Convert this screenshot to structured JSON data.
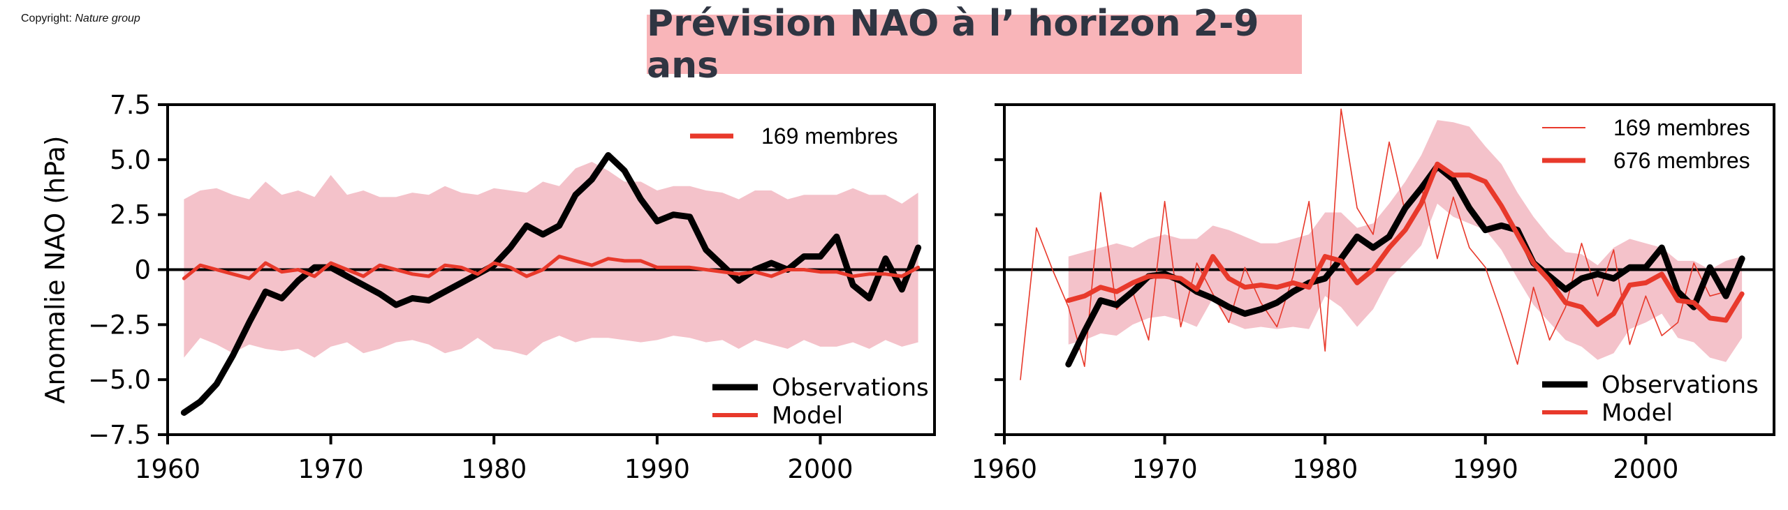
{
  "copyright": {
    "label": "Copyright:",
    "source": "Nature group"
  },
  "title": "Prévision NAO à l’ horizon 2-9 ans",
  "colors": {
    "title_bg": "#f9b5b9",
    "title_text": "#2f3542",
    "band": "#f4c2ca",
    "model": "#e8392b",
    "obs": "#000000"
  },
  "chart_data": [
    {
      "type": "line",
      "title": "",
      "xlabel": "",
      "ylabel": "Anomalie NAO (hPa)",
      "xlim": [
        1960,
        2007
      ],
      "ylim": [
        -7.5,
        7.5
      ],
      "xticks": [
        "1960",
        "1970",
        "1980",
        "1990",
        "2000"
      ],
      "yticks": [
        "7.5",
        "5.0",
        "2.5",
        "0",
        "−2.5",
        "−5.0",
        "−7.5"
      ],
      "zero_line": true,
      "top_legend": [
        {
          "label": "169 membres",
          "style": "thick-red"
        }
      ],
      "bottom_legend": [
        "Observations",
        "Model"
      ],
      "series": [
        {
          "name": "Observations",
          "color": "#000000",
          "x": [
            1961,
            1962,
            1963,
            1964,
            1965,
            1966,
            1967,
            1968,
            1969,
            1970,
            1971,
            1972,
            1973,
            1974,
            1975,
            1976,
            1977,
            1978,
            1979,
            1980,
            1981,
            1982,
            1983,
            1984,
            1985,
            1986,
            1987,
            1988,
            1989,
            1990,
            1991,
            1992,
            1993,
            1994,
            1995,
            1996,
            1997,
            1998,
            1999,
            2000,
            2001,
            2002,
            2003,
            2004,
            2005,
            2006
          ],
          "y": [
            -6.5,
            -6.0,
            -5.2,
            -3.9,
            -2.4,
            -1.0,
            -1.3,
            -0.5,
            0.1,
            0.1,
            -0.3,
            -0.7,
            -1.1,
            -1.6,
            -1.3,
            -1.4,
            -1.0,
            -0.6,
            -0.2,
            0.2,
            1.0,
            2.0,
            1.6,
            2.0,
            3.4,
            4.1,
            5.2,
            4.5,
            3.2,
            2.2,
            2.5,
            2.4,
            0.9,
            0.2,
            -0.5,
            0.0,
            0.3,
            0.0,
            0.6,
            0.6,
            1.5,
            -0.7,
            -1.3,
            0.5,
            -0.9,
            1.0
          ]
        },
        {
          "name": "Model",
          "color": "#e8392b",
          "x": [
            1961,
            1962,
            1963,
            1964,
            1965,
            1966,
            1967,
            1968,
            1969,
            1970,
            1971,
            1972,
            1973,
            1974,
            1975,
            1976,
            1977,
            1978,
            1979,
            1980,
            1981,
            1982,
            1983,
            1984,
            1985,
            1986,
            1987,
            1988,
            1989,
            1990,
            1991,
            1992,
            1993,
            1994,
            1995,
            1996,
            1997,
            1998,
            1999,
            2000,
            2001,
            2002,
            2003,
            2004,
            2005,
            2006
          ],
          "y": [
            -0.4,
            0.2,
            0.0,
            -0.2,
            -0.4,
            0.3,
            -0.1,
            0.0,
            -0.3,
            0.3,
            0.0,
            -0.3,
            0.2,
            0.0,
            -0.2,
            -0.3,
            0.2,
            0.1,
            -0.2,
            0.3,
            0.1,
            -0.3,
            0.0,
            0.6,
            0.4,
            0.2,
            0.5,
            0.4,
            0.4,
            0.1,
            0.1,
            0.1,
            0.0,
            -0.1,
            -0.2,
            -0.1,
            -0.3,
            0.0,
            0.0,
            -0.1,
            -0.1,
            -0.3,
            -0.2,
            -0.2,
            -0.3,
            0.1
          ]
        }
      ],
      "band": {
        "x": [
          1961,
          1962,
          1963,
          1964,
          1965,
          1966,
          1967,
          1968,
          1969,
          1970,
          1971,
          1972,
          1973,
          1974,
          1975,
          1976,
          1977,
          1978,
          1979,
          1980,
          1981,
          1982,
          1983,
          1984,
          1985,
          1986,
          1987,
          1988,
          1989,
          1990,
          1991,
          1992,
          1993,
          1994,
          1995,
          1996,
          1997,
          1998,
          1999,
          2000,
          2001,
          2002,
          2003,
          2004,
          2005,
          2006
        ],
        "upper": [
          3.2,
          3.6,
          3.7,
          3.4,
          3.2,
          4.0,
          3.4,
          3.6,
          3.3,
          4.3,
          3.4,
          3.6,
          3.3,
          3.3,
          3.5,
          3.4,
          3.8,
          3.5,
          3.4,
          3.7,
          3.6,
          3.5,
          4.0,
          3.8,
          4.6,
          4.9,
          4.5,
          4.0,
          4.0,
          3.6,
          3.8,
          3.8,
          3.6,
          3.5,
          3.2,
          3.6,
          3.6,
          3.2,
          3.4,
          3.4,
          3.4,
          3.7,
          3.4,
          3.4,
          3.0,
          3.5
        ],
        "lower": [
          -4.0,
          -3.1,
          -3.4,
          -3.8,
          -3.4,
          -3.6,
          -3.7,
          -3.6,
          -4.0,
          -3.5,
          -3.3,
          -3.8,
          -3.6,
          -3.3,
          -3.2,
          -3.4,
          -3.8,
          -3.6,
          -3.1,
          -3.6,
          -3.7,
          -3.9,
          -3.3,
          -3.0,
          -3.3,
          -3.1,
          -3.1,
          -3.2,
          -3.3,
          -3.2,
          -3.0,
          -3.1,
          -3.3,
          -3.2,
          -3.6,
          -3.2,
          -3.4,
          -3.6,
          -3.2,
          -3.5,
          -3.5,
          -3.3,
          -3.6,
          -3.2,
          -3.5,
          -3.3
        ]
      }
    },
    {
      "type": "line",
      "title": "",
      "xlabel": "",
      "ylabel": "",
      "xlim": [
        1960,
        2008
      ],
      "ylim": [
        -7.5,
        7.5
      ],
      "xticks": [
        "1960",
        "1970",
        "1980",
        "1990",
        "2000"
      ],
      "zero_line": true,
      "top_legend": [
        {
          "label": "169 membres",
          "style": "thin-red"
        },
        {
          "label": "676 membres",
          "style": "thick-red"
        }
      ],
      "bottom_legend": [
        "Observations",
        "Model"
      ],
      "series": [
        {
          "name": "Observations",
          "color": "#000000",
          "x": [
            1964,
            1965,
            1966,
            1967,
            1968,
            1969,
            1970,
            1971,
            1972,
            1973,
            1974,
            1975,
            1976,
            1977,
            1978,
            1979,
            1980,
            1981,
            1982,
            1983,
            1984,
            1985,
            1986,
            1987,
            1988,
            1989,
            1990,
            1991,
            1992,
            1993,
            1994,
            1995,
            1996,
            1997,
            1998,
            1999,
            2000,
            2001,
            2002,
            2003,
            2004,
            2005,
            2006
          ],
          "y": [
            -4.3,
            -2.8,
            -1.4,
            -1.6,
            -1.0,
            -0.3,
            -0.2,
            -0.5,
            -1.0,
            -1.3,
            -1.7,
            -2.0,
            -1.8,
            -1.5,
            -1.0,
            -0.6,
            -0.4,
            0.5,
            1.5,
            1.0,
            1.5,
            2.8,
            3.7,
            4.7,
            4.1,
            2.8,
            1.8,
            2.0,
            1.8,
            0.3,
            -0.3,
            -0.9,
            -0.4,
            -0.2,
            -0.4,
            0.1,
            0.1,
            1.0,
            -1.0,
            -1.7,
            0.1,
            -1.2,
            0.5
          ]
        },
        {
          "name": "Model 676 membres",
          "color": "#e8392b",
          "x": [
            1964,
            1965,
            1966,
            1967,
            1968,
            1969,
            1970,
            1971,
            1972,
            1973,
            1974,
            1975,
            1976,
            1977,
            1978,
            1979,
            1980,
            1981,
            1982,
            1983,
            1984,
            1985,
            1986,
            1987,
            1988,
            1989,
            1990,
            1991,
            1992,
            1993,
            1994,
            1995,
            1996,
            1997,
            1998,
            1999,
            2000,
            2001,
            2002,
            2003,
            2004,
            2005,
            2006
          ],
          "y": [
            -1.4,
            -1.2,
            -0.8,
            -1.0,
            -0.6,
            -0.3,
            -0.3,
            -0.4,
            -0.9,
            0.6,
            -0.4,
            -0.8,
            -0.7,
            -0.8,
            -0.6,
            -0.8,
            0.6,
            0.4,
            -0.6,
            0.0,
            1.0,
            1.8,
            3.0,
            4.8,
            4.3,
            4.3,
            4.0,
            2.9,
            1.6,
            0.3,
            -0.5,
            -1.5,
            -1.7,
            -2.5,
            -2.0,
            -0.7,
            -0.6,
            -0.2,
            -1.4,
            -1.5,
            -2.2,
            -2.3,
            -1.1
          ]
        },
        {
          "name": "Model 169 membres",
          "color": "#e8392b",
          "x": [
            1961,
            1962,
            1963,
            1964,
            1965,
            1966,
            1967,
            1968,
            1969,
            1970,
            1971,
            1972,
            1973,
            1974,
            1975,
            1976,
            1977,
            1978,
            1979,
            1980,
            1981,
            1982,
            1983,
            1984,
            1985,
            1986,
            1987,
            1988,
            1989,
            1990,
            1991,
            1992,
            1993,
            1994,
            1995,
            1996,
            1997,
            1998,
            1999,
            2000,
            2001,
            2002,
            2003,
            2004,
            2005,
            2006
          ],
          "y": [
            -5.0,
            1.9,
            0.0,
            -1.7,
            -4.4,
            3.5,
            -1.8,
            -1.0,
            -3.2,
            3.1,
            -2.6,
            0.3,
            -1.1,
            -2.4,
            0.1,
            -1.5,
            -2.6,
            -0.3,
            3.1,
            -3.7,
            7.3,
            2.8,
            1.6,
            5.8,
            2.6,
            3.8,
            0.5,
            3.3,
            1.0,
            0.1,
            -2.0,
            -4.3,
            -0.8,
            -3.2,
            -1.7,
            1.2,
            -1.2,
            0.9,
            -3.4,
            -1.2,
            -3.0,
            -2.4,
            0.3,
            -1.2,
            -1.0,
            0.2
          ]
        }
      ],
      "band": {
        "x": [
          1964,
          1965,
          1966,
          1967,
          1968,
          1969,
          1970,
          1971,
          1972,
          1973,
          1974,
          1975,
          1976,
          1977,
          1978,
          1979,
          1980,
          1981,
          1982,
          1983,
          1984,
          1985,
          1986,
          1987,
          1988,
          1989,
          1990,
          1991,
          1992,
          1993,
          1994,
          1995,
          1996,
          1997,
          1998,
          1999,
          2000,
          2001,
          2002,
          2003,
          2004,
          2005,
          2006
        ],
        "upper": [
          0.6,
          0.8,
          1.0,
          1.2,
          1.0,
          1.4,
          1.6,
          1.4,
          1.4,
          2.0,
          1.8,
          1.5,
          1.2,
          1.2,
          1.4,
          1.6,
          2.6,
          2.6,
          1.9,
          2.1,
          3.0,
          4.0,
          5.2,
          6.8,
          6.7,
          6.5,
          5.6,
          4.8,
          3.5,
          2.4,
          1.5,
          0.8,
          0.7,
          0.2,
          1.0,
          1.4,
          1.2,
          1.0,
          0.4,
          0.4,
          0.0,
          0.4,
          0.6
        ],
        "lower": [
          -3.4,
          -3.2,
          -2.9,
          -3.0,
          -2.5,
          -2.2,
          -2.1,
          -2.3,
          -2.6,
          -1.3,
          -2.4,
          -2.7,
          -2.6,
          -2.7,
          -2.6,
          -2.7,
          -1.2,
          -1.7,
          -2.6,
          -1.8,
          -0.4,
          0.3,
          1.1,
          3.0,
          2.4,
          2.1,
          1.8,
          0.9,
          -0.4,
          -1.6,
          -2.4,
          -3.2,
          -3.5,
          -4.1,
          -3.8,
          -2.7,
          -2.4,
          -2.0,
          -3.1,
          -3.3,
          -4.0,
          -4.2,
          -3.1
        ]
      }
    }
  ]
}
